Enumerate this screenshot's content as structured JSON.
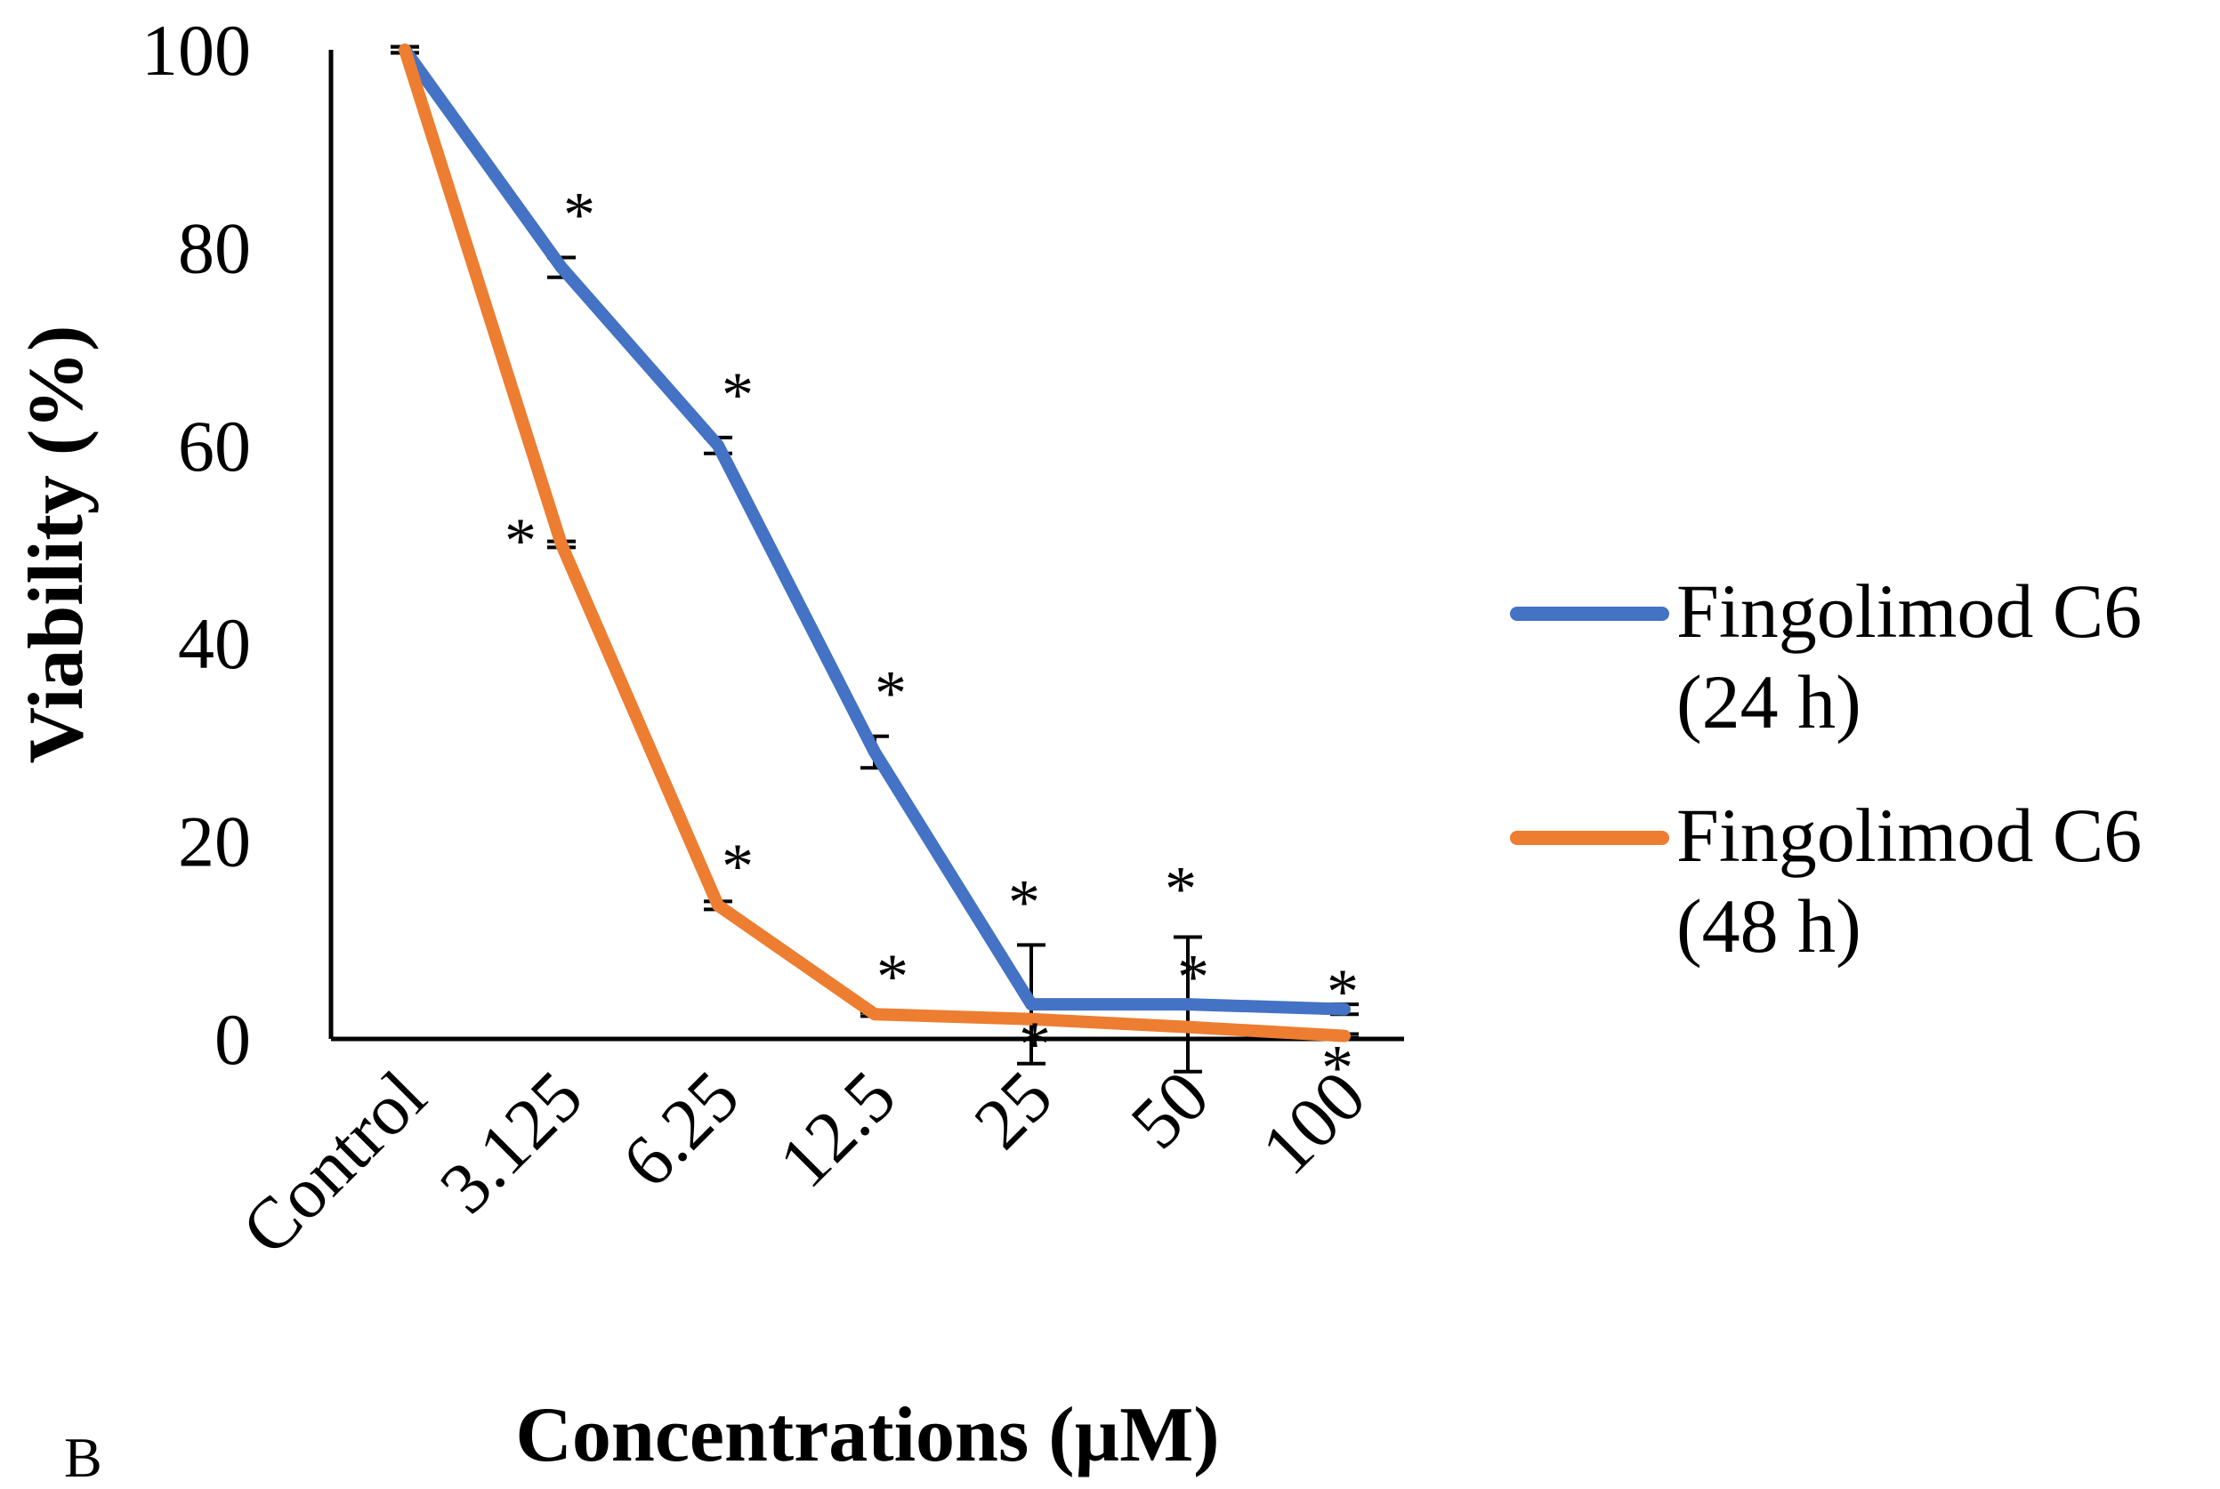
{
  "chart_data": {
    "type": "line",
    "title": "",
    "panel_label": "B",
    "xlabel": "Concentrations (µM)",
    "ylabel": "Viability (%)",
    "ylim": [
      0,
      100
    ],
    "yticks": [
      0,
      20,
      40,
      60,
      80,
      100
    ],
    "categories": [
      "Control",
      "3.125",
      "6.25",
      "12.5",
      "25",
      "50",
      "100"
    ],
    "grid": false,
    "legend_position": "right",
    "series": [
      {
        "name": "Fingolimod C6",
        "name_line2": "(24 h)",
        "color": "#4472C4",
        "values": [
          100,
          78,
          60,
          29,
          3.5,
          3.5,
          3
        ],
        "error": [
          0.3,
          1,
          0.8,
          1.6,
          6,
          6.8,
          0.5
        ],
        "significance": [
          "",
          "*",
          "*",
          "*",
          "*",
          "*",
          "*"
        ]
      },
      {
        "name": "Fingolimod C6",
        "name_line2": "(48 h)",
        "color": "#ED7D31",
        "values": [
          100,
          50,
          13.5,
          2.5,
          2,
          1.2,
          0.3
        ],
        "error": [
          0.3,
          0.3,
          0.4,
          0.2,
          0.3,
          0.3,
          0.2
        ],
        "significance": [
          "",
          "*",
          "*",
          "*",
          "*",
          "*",
          "*"
        ]
      }
    ]
  }
}
